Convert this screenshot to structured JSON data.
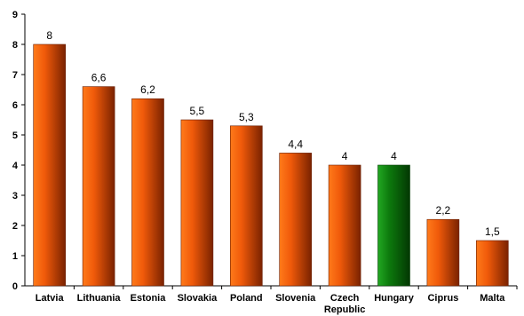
{
  "chart_data": {
    "type": "bar",
    "categories": [
      "Latvia",
      "Lithuania",
      "Estonia",
      "Slovakia",
      "Poland",
      "Slovenia",
      "Czech Republic",
      "Hungary",
      "Ciprus",
      "Malta"
    ],
    "values": [
      8,
      6.6,
      6.2,
      5.5,
      5.3,
      4.4,
      4,
      4,
      2.2,
      1.5
    ],
    "data_labels": [
      "8",
      "6,6",
      "6,2",
      "5,5",
      "5,3",
      "4,4",
      "4",
      "4",
      "2,2",
      "1,5"
    ],
    "y_ticks": [
      "0",
      "1",
      "2",
      "3",
      "4",
      "5",
      "6",
      "7",
      "8",
      "9"
    ],
    "ylim": [
      0,
      9
    ],
    "highlight_category": "Hungary",
    "colors": {
      "bar_default": "#e8520a",
      "bar_highlight": "#0d7a0d",
      "axis": "#000000"
    },
    "title": "",
    "xlabel": "",
    "ylabel": "",
    "grid": false,
    "legend": "none"
  }
}
